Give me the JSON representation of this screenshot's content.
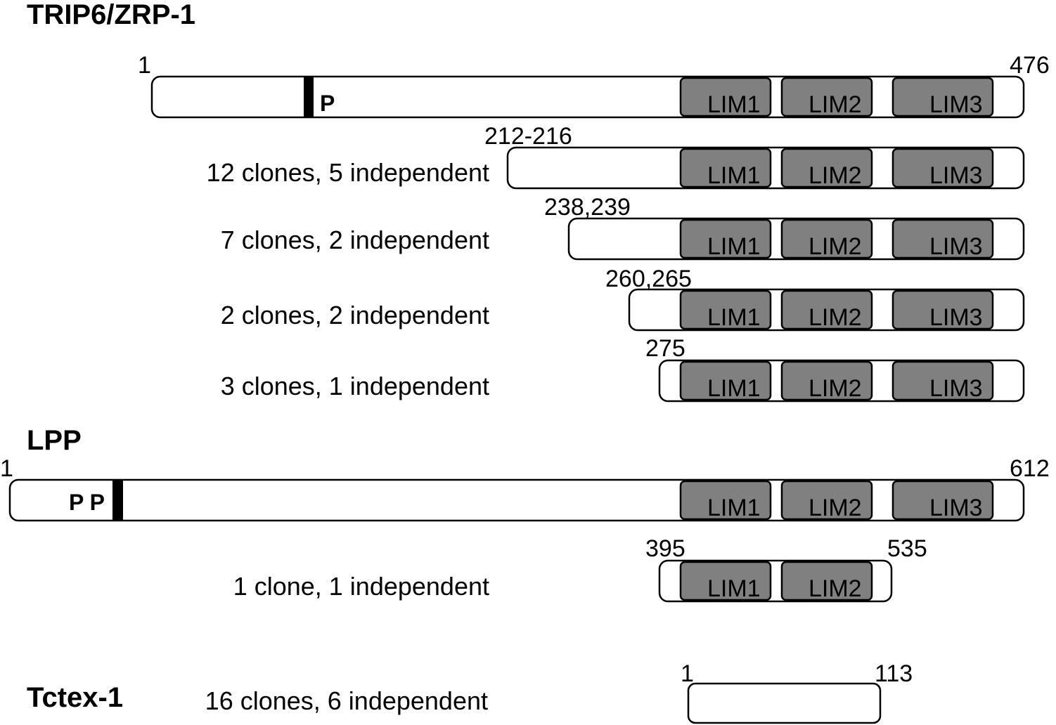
{
  "sections": {
    "trip6": {
      "title": "TRIP6/ZRP-1"
    },
    "lpp": {
      "title": "LPP"
    },
    "tctex": {
      "title": "Tctex-1"
    }
  },
  "trip6_full": {
    "start": "1",
    "end": "476",
    "motif": "P",
    "domains": [
      "LIM1",
      "LIM2",
      "LIM3"
    ]
  },
  "trip6_clones": [
    {
      "position": "212-216",
      "clones": "12 clones, 5 independent",
      "domains": [
        "LIM1",
        "LIM2",
        "LIM3"
      ]
    },
    {
      "position": "238,239",
      "clones": "7 clones, 2 independent",
      "domains": [
        "LIM1",
        "LIM2",
        "LIM3"
      ]
    },
    {
      "position": "260,265",
      "clones": "2 clones, 2 independent",
      "domains": [
        "LIM1",
        "LIM2",
        "LIM3"
      ]
    },
    {
      "position": "275",
      "clones": "3 clones, 1 independent",
      "domains": [
        "LIM1",
        "LIM2",
        "LIM3"
      ]
    }
  ],
  "lpp_full": {
    "start": "1",
    "end": "612",
    "motif": "P P",
    "domains": [
      "LIM1",
      "LIM2",
      "LIM3"
    ]
  },
  "lpp_clone": {
    "start": "395",
    "end": "535",
    "clones": "1 clone, 1 independent",
    "domains": [
      "LIM1",
      "LIM2"
    ]
  },
  "tctex": {
    "start": "1",
    "end": "113",
    "clones": "16 clones, 6 independent"
  },
  "colors": {
    "lim_fill": "#808080",
    "bar_fill": "#ffffff",
    "stroke": "#000000"
  }
}
